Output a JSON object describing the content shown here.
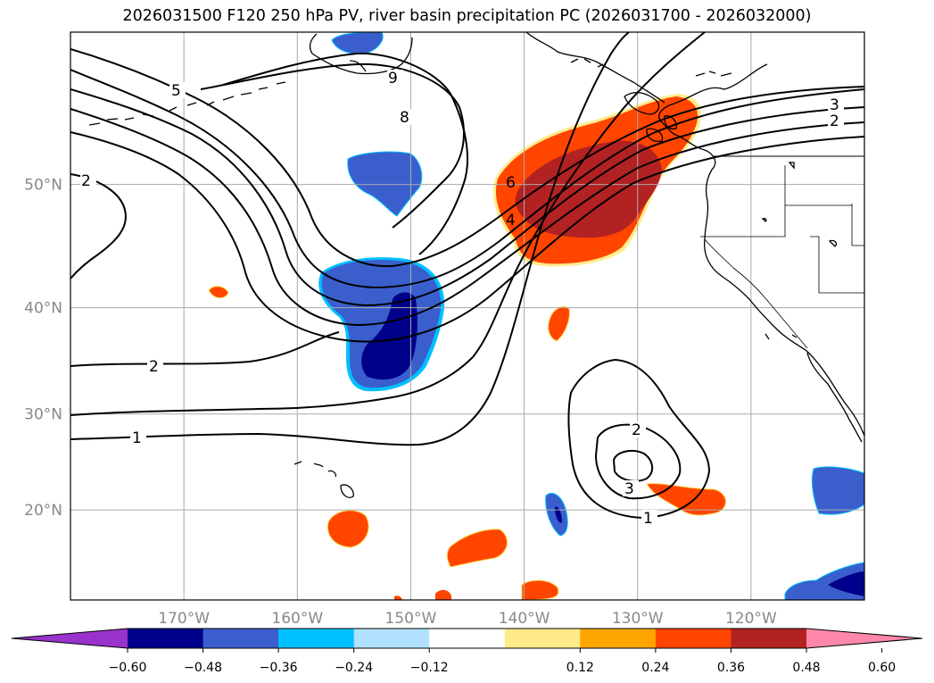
{
  "title": "2026031500 F120 250 hPa PV, river basin precipitation PC (2026031700 - 2026032000)",
  "map": {
    "lon_range": [
      -180,
      -110
    ],
    "lat_range": [
      10,
      60
    ],
    "lon_ticks": [
      {
        "value": -170,
        "label": "170°W"
      },
      {
        "value": -160,
        "label": "160°W"
      },
      {
        "value": -150,
        "label": "150°W"
      },
      {
        "value": -140,
        "label": "140°W"
      },
      {
        "value": -130,
        "label": "130°W"
      },
      {
        "value": -120,
        "label": "120°W"
      }
    ],
    "lat_ticks": [
      {
        "value": 20,
        "label": "20°N"
      },
      {
        "value": 30,
        "label": "30°N"
      },
      {
        "value": 40,
        "label": "40°N"
      },
      {
        "value": 50,
        "label": "50°N"
      }
    ],
    "gridlines": true,
    "contour_labels": [
      "5",
      "9",
      "8",
      "2",
      "2",
      "1",
      "6",
      "4",
      "3",
      "2",
      "2",
      "3",
      "1"
    ]
  },
  "colorbar": {
    "orientation": "horizontal",
    "extend": "both",
    "colors": [
      "#9933cc",
      "#00008b",
      "#3a5fcd",
      "#00bfff",
      "#b0e2ff",
      "#ffffff",
      "#ffeb8a",
      "#ffa500",
      "#ff4500",
      "#b22222",
      "#ff88aa"
    ],
    "tick_labels": [
      "−0.60",
      "−0.48",
      "−0.36",
      "−0.24",
      "−0.12",
      "0.12",
      "0.24",
      "0.36",
      "0.48",
      "0.60"
    ]
  },
  "colors": {
    "grid": "#aaaaaa",
    "contour": "#000000",
    "coast": "#000000"
  }
}
